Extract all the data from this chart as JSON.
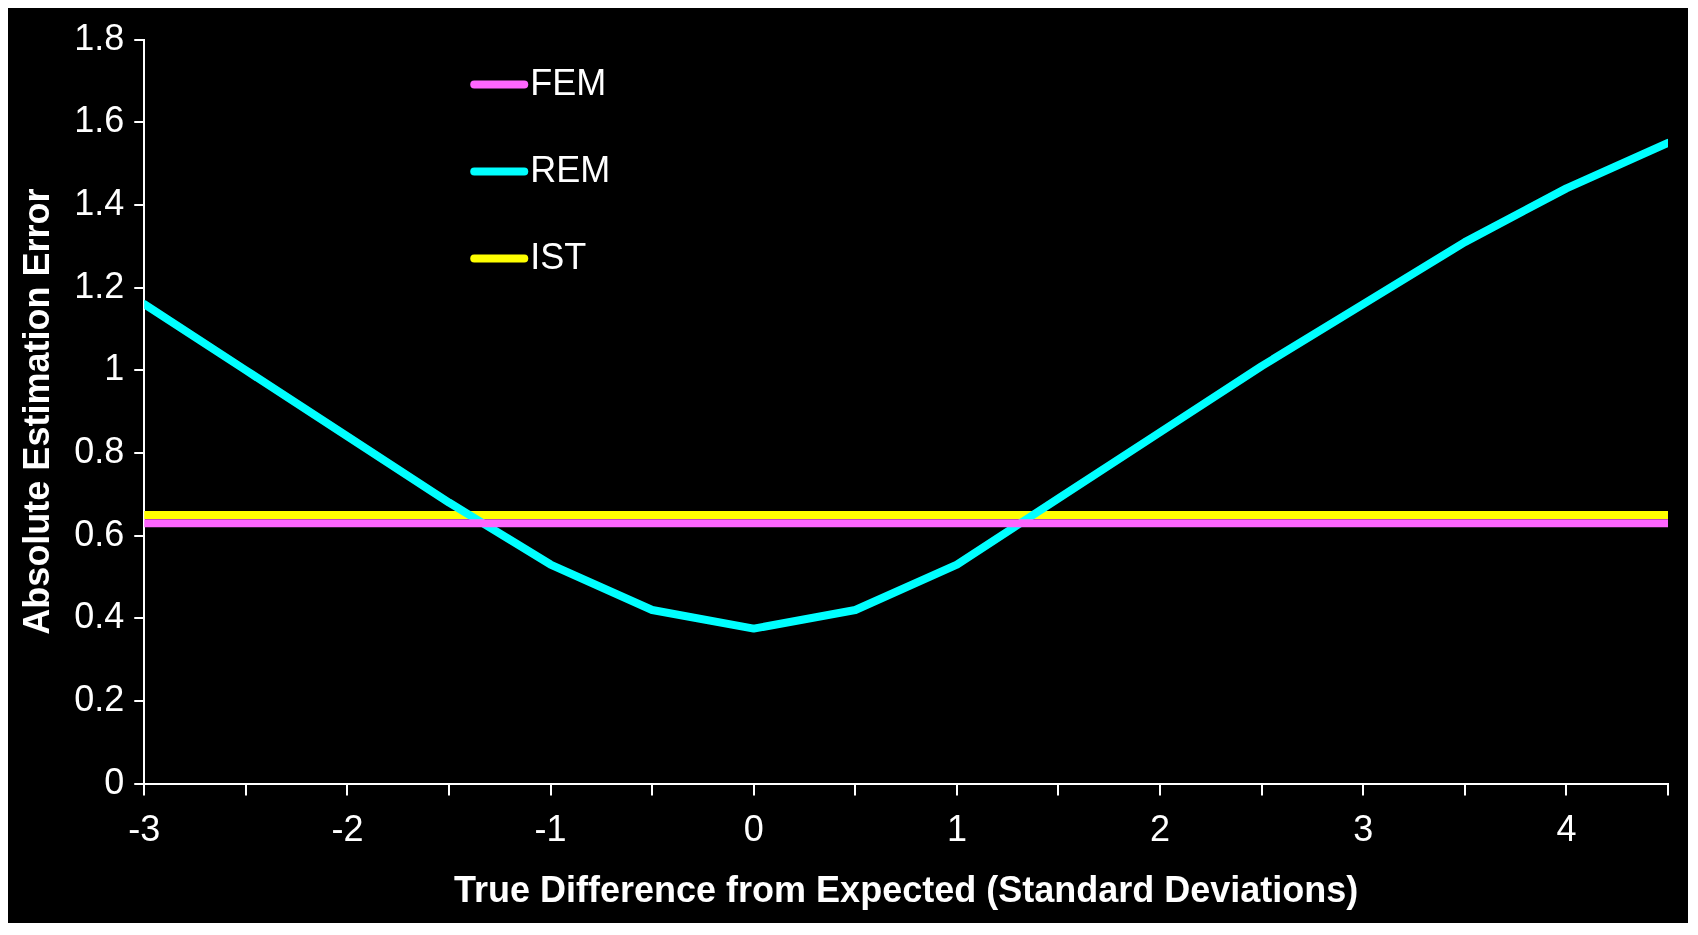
{
  "chart_data": {
    "type": "line",
    "xlabel": "True Difference from Expected (Standard Deviations)",
    "ylabel": "Absolute Estimation Error",
    "x": [
      -3,
      -2.5,
      -2,
      -1.5,
      -1,
      -0.5,
      0,
      0.5,
      1,
      1.5,
      2,
      2.5,
      3,
      3.5,
      4,
      4.5
    ],
    "series": [
      {
        "name": "FEM",
        "color": "#ff66ff",
        "values": [
          0.63,
          0.63,
          0.63,
          0.63,
          0.63,
          0.63,
          0.63,
          0.63,
          0.63,
          0.63,
          0.63,
          0.63,
          0.63,
          0.63,
          0.63,
          0.63
        ]
      },
      {
        "name": "REM",
        "color": "#00ffff",
        "values": [
          1.16,
          1.0,
          0.84,
          0.68,
          0.53,
          0.42,
          0.375,
          0.42,
          0.53,
          0.69,
          0.85,
          1.01,
          1.16,
          1.31,
          1.44,
          1.55
        ]
      },
      {
        "name": "IST",
        "color": "#ffff00",
        "values": [
          0.65,
          0.65,
          0.65,
          0.65,
          0.65,
          0.65,
          0.65,
          0.65,
          0.65,
          0.65,
          0.65,
          0.65,
          0.65,
          0.65,
          0.65,
          0.65
        ]
      }
    ],
    "xlim": [
      -3,
      4.5
    ],
    "xticks": [
      -3,
      {
        "value": -2.5,
        "label": null
      },
      -2,
      {
        "value": -1.5,
        "label": null
      },
      -1,
      {
        "value": -0.5,
        "label": null
      },
      0,
      {
        "value": 0.5,
        "label": null
      },
      1,
      {
        "value": 1.5,
        "label": null
      },
      2,
      {
        "value": 2.5,
        "label": null
      },
      3,
      {
        "value": 3.5,
        "label": null
      },
      4,
      {
        "value": 4.5,
        "label": null
      }
    ],
    "ylim": [
      0,
      1.8
    ],
    "yticks": [
      0,
      0.2,
      0.4,
      0.6,
      0.8,
      1,
      1.2,
      1.4,
      1.6,
      1.8
    ],
    "grid": false,
    "legend": "top left",
    "marker": "none",
    "line_style": "solid"
  }
}
